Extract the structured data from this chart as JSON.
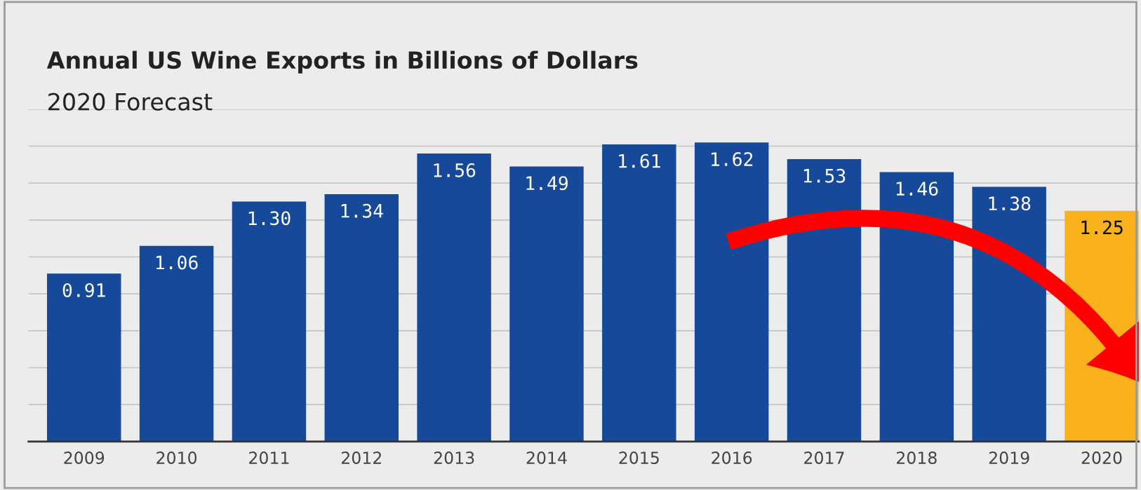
{
  "chart_data": {
    "type": "bar",
    "title": "Annual US Wine Exports in Billions of Dollars",
    "subtitle": "2020 Forecast",
    "categories": [
      "2009",
      "2010",
      "2011",
      "2012",
      "2013",
      "2014",
      "2015",
      "2016",
      "2017",
      "2018",
      "2019",
      "2020"
    ],
    "values": [
      0.91,
      1.06,
      1.3,
      1.34,
      1.56,
      1.49,
      1.61,
      1.62,
      1.53,
      1.46,
      1.38,
      1.25
    ],
    "colors": [
      "#17499b",
      "#17499b",
      "#17499b",
      "#17499b",
      "#17499b",
      "#17499b",
      "#17499b",
      "#17499b",
      "#17499b",
      "#17499b",
      "#17499b",
      "#f9b21b"
    ],
    "ylim": [
      0,
      1.8
    ],
    "yticks": [
      {
        "value": 0.2,
        "label": null
      },
      {
        "value": 0.4,
        "label": null
      },
      {
        "value": 0.6,
        "label": null
      },
      {
        "value": 0.8,
        "label": null
      },
      {
        "value": 1.0,
        "label": null
      },
      {
        "value": 1.2,
        "label": null
      },
      {
        "value": 1.4,
        "label": null
      },
      {
        "value": 1.6,
        "label": null
      },
      {
        "value": 1.8,
        "label": null
      }
    ],
    "value_labels": [
      "0.91",
      "1.06",
      "1.30",
      "1.34",
      "1.56",
      "1.49",
      "1.61",
      "1.62",
      "1.53",
      "1.46",
      "1.38",
      "1.25"
    ],
    "tick_labels": "x",
    "grid": "y"
  }
}
